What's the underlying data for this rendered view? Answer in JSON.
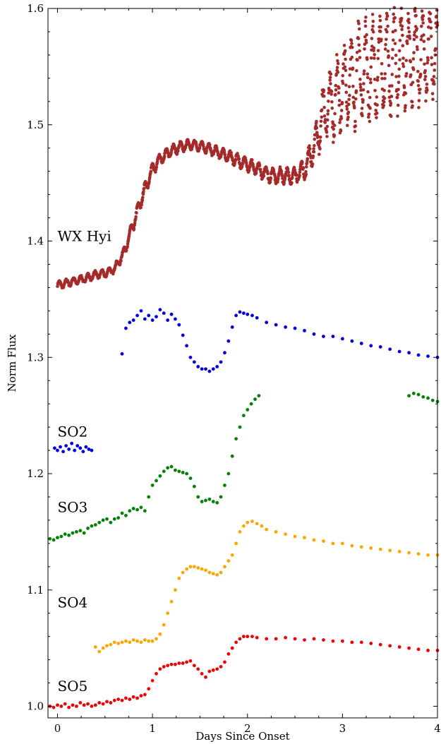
{
  "chart_data": {
    "type": "scatter",
    "xlabel": "Days Since Onset",
    "ylabel": "Norm Flux",
    "xlim": [
      -0.1,
      4.0
    ],
    "ylim": [
      0.99,
      1.6
    ],
    "xticks": [
      0,
      1,
      2,
      3,
      4
    ],
    "xtick_labels": [
      "0",
      "1",
      "2",
      "3",
      "4"
    ],
    "yticks": [
      1.0,
      1.1,
      1.2,
      1.3,
      1.4,
      1.5,
      1.6
    ],
    "ytick_labels": [
      "1.0",
      "1.1",
      "1.2",
      "1.3",
      "1.4",
      "1.5",
      "1.6"
    ],
    "grid": false,
    "legend": "none",
    "series_labels": [
      {
        "text": "WX Hyi",
        "x": 0.0,
        "y": 1.4
      },
      {
        "text": "SO2",
        "x": 0.0,
        "y": 1.232
      },
      {
        "text": "SO3",
        "x": 0.0,
        "y": 1.167
      },
      {
        "text": "SO4",
        "x": 0.0,
        "y": 1.085
      },
      {
        "text": "SO5",
        "x": 0.0,
        "y": 1.013
      }
    ],
    "series": [
      {
        "name": "WX Hyi",
        "color": "#a52a2a",
        "style": "dense",
        "x": [
          0.0,
          0.1,
          0.2,
          0.3,
          0.4,
          0.5,
          0.6,
          0.7,
          0.8,
          0.9,
          1.0,
          1.1,
          1.2,
          1.3,
          1.4,
          1.5,
          1.6,
          1.7,
          1.8,
          1.9,
          2.0,
          2.1,
          2.2,
          2.3,
          2.4,
          2.5,
          2.6,
          2.7,
          2.8,
          2.9,
          3.0,
          3.2,
          3.4,
          3.6,
          3.8,
          4.0
        ],
        "y": [
          1.362,
          1.364,
          1.366,
          1.368,
          1.371,
          1.372,
          1.376,
          1.39,
          1.415,
          1.44,
          1.462,
          1.472,
          1.478,
          1.481,
          1.483,
          1.482,
          1.479,
          1.476,
          1.473,
          1.469,
          1.466,
          1.462,
          1.458,
          1.456,
          1.456,
          1.456,
          1.462,
          1.48,
          1.51,
          1.52,
          1.53,
          1.545,
          1.55,
          1.555,
          1.56,
          1.56
        ],
        "band": [
          0.003,
          0.003,
          0.003,
          0.003,
          0.003,
          0.003,
          0.003,
          0.004,
          0.005,
          0.005,
          0.005,
          0.004,
          0.004,
          0.004,
          0.004,
          0.004,
          0.004,
          0.004,
          0.004,
          0.005,
          0.005,
          0.005,
          0.006,
          0.006,
          0.006,
          0.006,
          0.008,
          0.012,
          0.022,
          0.028,
          0.032,
          0.038,
          0.038,
          0.038,
          0.036,
          0.03
        ]
      },
      {
        "name": "SO2",
        "color": "#0000dd",
        "style": "points",
        "x": [
          -0.03,
          0.0,
          0.03,
          0.06,
          0.09,
          0.12,
          0.15,
          0.18,
          0.21,
          0.24,
          0.27,
          0.3,
          0.33,
          0.36,
          0.68,
          0.72,
          0.76,
          0.8,
          0.84,
          0.88,
          0.92,
          0.96,
          1.0,
          1.04,
          1.08,
          1.12,
          1.16,
          1.2,
          1.24,
          1.28,
          1.32,
          1.36,
          1.4,
          1.44,
          1.48,
          1.52,
          1.56,
          1.6,
          1.64,
          1.68,
          1.72,
          1.76,
          1.8,
          1.84,
          1.88,
          1.92,
          1.96,
          2.0,
          2.05,
          2.1,
          2.2,
          2.3,
          2.4,
          2.5,
          2.6,
          2.7,
          2.8,
          2.9,
          3.0,
          3.1,
          3.2,
          3.3,
          3.4,
          3.5,
          3.6,
          3.7,
          3.8,
          3.9,
          4.0
        ],
        "y": [
          1.222,
          1.22,
          1.223,
          1.219,
          1.224,
          1.221,
          1.226,
          1.22,
          1.224,
          1.222,
          1.219,
          1.223,
          1.221,
          1.22,
          1.303,
          1.325,
          1.33,
          1.332,
          1.336,
          1.34,
          1.333,
          1.336,
          1.332,
          1.335,
          1.341,
          1.338,
          1.332,
          1.337,
          1.333,
          1.328,
          1.319,
          1.31,
          1.3,
          1.296,
          1.292,
          1.29,
          1.29,
          1.288,
          1.29,
          1.292,
          1.296,
          1.304,
          1.314,
          1.326,
          1.336,
          1.339,
          1.338,
          1.337,
          1.336,
          1.334,
          1.33,
          1.328,
          1.326,
          1.325,
          1.323,
          1.32,
          1.318,
          1.318,
          1.316,
          1.314,
          1.312,
          1.31,
          1.309,
          1.307,
          1.305,
          1.304,
          1.302,
          1.301,
          1.3
        ]
      },
      {
        "name": "SO3",
        "color": "#008000",
        "style": "points",
        "x": [
          -0.08,
          -0.04,
          0.0,
          0.04,
          0.08,
          0.12,
          0.16,
          0.2,
          0.24,
          0.28,
          0.32,
          0.36,
          0.4,
          0.44,
          0.48,
          0.52,
          0.56,
          0.6,
          0.64,
          0.68,
          0.72,
          0.76,
          0.8,
          0.84,
          0.88,
          0.92,
          0.96,
          1.0,
          1.04,
          1.08,
          1.12,
          1.16,
          1.2,
          1.24,
          1.28,
          1.32,
          1.36,
          1.4,
          1.44,
          1.48,
          1.52,
          1.56,
          1.6,
          1.64,
          1.68,
          1.72,
          1.76,
          1.8,
          1.84,
          1.88,
          1.92,
          1.96,
          2.0,
          2.04,
          2.08,
          2.12,
          3.7,
          3.75,
          3.8,
          3.85,
          3.9,
          3.95,
          4.0
        ],
        "y": [
          1.144,
          1.143,
          1.145,
          1.146,
          1.148,
          1.147,
          1.149,
          1.15,
          1.151,
          1.149,
          1.153,
          1.155,
          1.156,
          1.158,
          1.16,
          1.161,
          1.158,
          1.161,
          1.162,
          1.166,
          1.164,
          1.168,
          1.17,
          1.169,
          1.171,
          1.168,
          1.18,
          1.19,
          1.194,
          1.198,
          1.202,
          1.205,
          1.206,
          1.203,
          1.202,
          1.201,
          1.2,
          1.196,
          1.189,
          1.18,
          1.176,
          1.177,
          1.178,
          1.176,
          1.175,
          1.18,
          1.19,
          1.2,
          1.215,
          1.23,
          1.24,
          1.25,
          1.255,
          1.26,
          1.264,
          1.267,
          1.267,
          1.269,
          1.268,
          1.266,
          1.265,
          1.263,
          1.262
        ]
      },
      {
        "name": "SO4",
        "color": "#ffa500",
        "style": "points",
        "x": [
          0.4,
          0.44,
          0.48,
          0.52,
          0.56,
          0.6,
          0.64,
          0.68,
          0.72,
          0.76,
          0.8,
          0.84,
          0.88,
          0.92,
          0.96,
          1.0,
          1.04,
          1.08,
          1.12,
          1.16,
          1.2,
          1.24,
          1.28,
          1.32,
          1.36,
          1.4,
          1.44,
          1.48,
          1.52,
          1.56,
          1.6,
          1.64,
          1.68,
          1.72,
          1.76,
          1.8,
          1.84,
          1.88,
          1.92,
          1.96,
          2.0,
          2.05,
          2.1,
          2.15,
          2.2,
          2.3,
          2.4,
          2.5,
          2.6,
          2.7,
          2.8,
          2.9,
          3.0,
          3.1,
          3.2,
          3.3,
          3.4,
          3.5,
          3.6,
          3.7,
          3.8,
          3.9,
          4.0
        ],
        "y": [
          1.051,
          1.047,
          1.05,
          1.052,
          1.053,
          1.055,
          1.054,
          1.055,
          1.056,
          1.055,
          1.057,
          1.056,
          1.055,
          1.057,
          1.056,
          1.056,
          1.058,
          1.062,
          1.07,
          1.08,
          1.09,
          1.1,
          1.11,
          1.115,
          1.118,
          1.12,
          1.12,
          1.119,
          1.118,
          1.117,
          1.115,
          1.114,
          1.113,
          1.115,
          1.12,
          1.125,
          1.13,
          1.14,
          1.15,
          1.155,
          1.158,
          1.159,
          1.157,
          1.155,
          1.152,
          1.15,
          1.148,
          1.146,
          1.145,
          1.143,
          1.142,
          1.14,
          1.14,
          1.138,
          1.137,
          1.136,
          1.135,
          1.134,
          1.133,
          1.132,
          1.131,
          1.13,
          1.13
        ]
      },
      {
        "name": "SO5",
        "color": "#ee0000",
        "style": "points",
        "x": [
          -0.08,
          -0.04,
          0.0,
          0.04,
          0.08,
          0.12,
          0.16,
          0.2,
          0.24,
          0.28,
          0.32,
          0.36,
          0.4,
          0.44,
          0.48,
          0.52,
          0.56,
          0.6,
          0.64,
          0.68,
          0.72,
          0.76,
          0.8,
          0.84,
          0.88,
          0.92,
          0.96,
          1.0,
          1.04,
          1.08,
          1.12,
          1.16,
          1.2,
          1.24,
          1.28,
          1.32,
          1.36,
          1.4,
          1.44,
          1.48,
          1.52,
          1.56,
          1.6,
          1.64,
          1.68,
          1.72,
          1.76,
          1.8,
          1.84,
          1.88,
          1.92,
          1.96,
          2.0,
          2.05,
          2.1,
          2.2,
          2.3,
          2.4,
          2.5,
          2.6,
          2.7,
          2.8,
          2.9,
          3.0,
          3.1,
          3.2,
          3.3,
          3.4,
          3.5,
          3.6,
          3.7,
          3.8,
          3.9,
          4.0
        ],
        "y": [
          1.0,
          0.999,
          1.001,
          1.0,
          1.002,
          0.999,
          1.001,
          1.0,
          1.003,
          1.001,
          1.002,
          1.0,
          1.001,
          1.003,
          1.002,
          1.004,
          1.003,
          1.005,
          1.006,
          1.005,
          1.007,
          1.006,
          1.008,
          1.007,
          1.009,
          1.01,
          1.015,
          1.022,
          1.028,
          1.032,
          1.034,
          1.035,
          1.036,
          1.036,
          1.037,
          1.037,
          1.038,
          1.039,
          1.035,
          1.032,
          1.028,
          1.025,
          1.03,
          1.031,
          1.032,
          1.034,
          1.038,
          1.045,
          1.05,
          1.055,
          1.058,
          1.06,
          1.06,
          1.06,
          1.059,
          1.058,
          1.058,
          1.059,
          1.058,
          1.057,
          1.058,
          1.057,
          1.056,
          1.056,
          1.055,
          1.055,
          1.054,
          1.053,
          1.052,
          1.051,
          1.05,
          1.049,
          1.048,
          1.048
        ]
      }
    ]
  }
}
